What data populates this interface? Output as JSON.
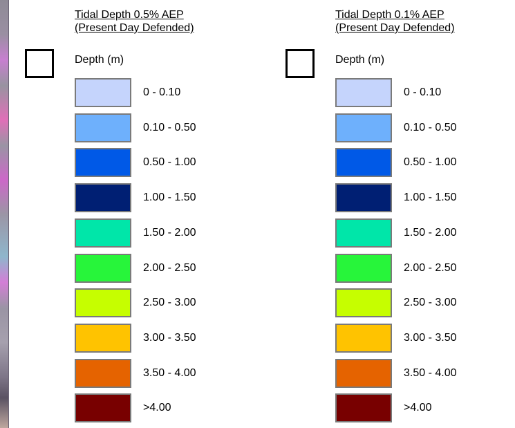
{
  "legends": [
    {
      "title_line1": "Tidal Depth 0.5% AEP",
      "title_line2": "(Present Day Defended)",
      "unit_label": "Depth (m)",
      "classes": [
        {
          "label": "0 - 0.10",
          "color": "#c5d4fc"
        },
        {
          "label": "0.10 - 0.50",
          "color": "#6eb0fc"
        },
        {
          "label": "0.50 - 1.00",
          "color": "#0059e7"
        },
        {
          "label": "1.00 - 1.50",
          "color": "#001f73"
        },
        {
          "label": "1.50 - 2.00",
          "color": "#00e6a9"
        },
        {
          "label": "2.00 - 2.50",
          "color": "#27f53a"
        },
        {
          "label": "2.50 - 3.00",
          "color": "#c6fe00"
        },
        {
          "label": "3.00 - 3.50",
          "color": "#ffc300"
        },
        {
          "label": "3.50 - 4.00",
          "color": "#e56300"
        },
        {
          "label": ">4.00",
          "color": "#780000"
        }
      ]
    },
    {
      "title_line1": "Tidal Depth 0.1% AEP",
      "title_line2": "(Present Day Defended)",
      "unit_label": "Depth (m)",
      "classes": [
        {
          "label": "0 - 0.10",
          "color": "#c5d4fc"
        },
        {
          "label": "0.10 - 0.50",
          "color": "#6eb0fc"
        },
        {
          "label": "0.50 - 1.00",
          "color": "#0059e7"
        },
        {
          "label": "1.00 - 1.50",
          "color": "#001f73"
        },
        {
          "label": "1.50 - 2.00",
          "color": "#00e6a9"
        },
        {
          "label": "2.00 - 2.50",
          "color": "#27f53a"
        },
        {
          "label": "2.50 - 3.00",
          "color": "#c6fe00"
        },
        {
          "label": "3.00 - 3.50",
          "color": "#ffc300"
        },
        {
          "label": "3.50 - 4.00",
          "color": "#e56300"
        },
        {
          "label": ">4.00",
          "color": "#780000"
        }
      ]
    }
  ]
}
